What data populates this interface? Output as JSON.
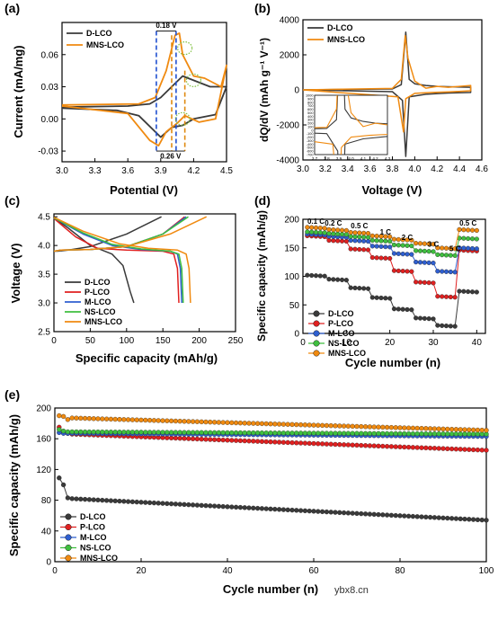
{
  "watermark": "ybx8.cn",
  "colors": {
    "D-LCO": "#3a3a3a",
    "P-LCO": "#e02020",
    "M-LCO": "#2f5fd0",
    "NS-LCO": "#3fbf3f",
    "MNS-LCO": "#f08a10",
    "dash_blue": "#2050d0",
    "dash_orange": "#e08a10",
    "circle_green": "#80c040"
  },
  "chart_data": [
    {
      "id": "a",
      "panel_label": "(a)",
      "type": "line",
      "xlabel": "Potential (V)",
      "ylabel": "Current (mA/mg)",
      "xlim": [
        3.0,
        4.5
      ],
      "ylim": [
        -0.04,
        0.09
      ],
      "xticks": [
        "3.0",
        "3.3",
        "3.6",
        "3.9",
        "4.2",
        "4.5"
      ],
      "yticks": [
        "-0.03",
        "0.00",
        "0.03",
        "0.06"
      ],
      "legend": [
        "D-LCO",
        "MNS-LCO"
      ],
      "annotations": [
        "0.18 V",
        "0.26 V"
      ],
      "series": [
        {
          "name": "D-LCO",
          "x": [
            3.0,
            3.6,
            3.8,
            3.9,
            4.0,
            4.1,
            4.2,
            4.35,
            4.5,
            4.4,
            4.2,
            4.1,
            4.0,
            3.9,
            3.85,
            3.7,
            3.5,
            3.0
          ],
          "y": [
            0.011,
            0.012,
            0.014,
            0.02,
            0.03,
            0.04,
            0.036,
            0.03,
            0.03,
            0.004,
            0.0,
            -0.006,
            -0.008,
            -0.017,
            -0.012,
            0.003,
            0.008,
            0.01
          ]
        },
        {
          "name": "MNS-LCO",
          "x": [
            3.0,
            3.7,
            3.85,
            3.95,
            4.03,
            4.07,
            4.1,
            4.2,
            4.3,
            4.45,
            4.5,
            4.4,
            4.25,
            4.12,
            4.05,
            3.95,
            3.88,
            3.8,
            3.6,
            3.0
          ],
          "y": [
            0.013,
            0.014,
            0.02,
            0.045,
            0.078,
            0.08,
            0.06,
            0.04,
            0.038,
            0.03,
            0.05,
            0.0,
            -0.003,
            0.003,
            -0.004,
            -0.012,
            -0.025,
            -0.02,
            0.005,
            0.012
          ]
        }
      ]
    },
    {
      "id": "b",
      "panel_label": "(b)",
      "type": "line",
      "xlabel": "Voltage (V)",
      "ylabel": "dQ/dV (mAh g⁻¹ V⁻¹)",
      "xlim": [
        3.0,
        4.6
      ],
      "ylim": [
        -4000,
        4000
      ],
      "xticks": [
        "3.0",
        "3.2",
        "3.4",
        "3.6",
        "3.8",
        "4.0",
        "4.2",
        "4.4",
        "4.6"
      ],
      "yticks": [
        "-4000",
        "-2000",
        "0",
        "2000",
        "4000"
      ],
      "legend": [
        "D-LCO",
        "MNS-LCO"
      ],
      "inset": {
        "xlim": [
          3.7,
          4.3
        ],
        "ylim": [
          -700,
          1000
        ],
        "xticks": [
          "3.7",
          "3.8",
          "3.9",
          "4.0",
          "4.1",
          "4.2",
          "4.3"
        ],
        "yticks": [
          "-700",
          "-600",
          "-500",
          "-400",
          "-300",
          "-200",
          "-100",
          "0",
          "100",
          "200",
          "300",
          "400",
          "500",
          "600",
          "700",
          "800",
          "900",
          "1000"
        ]
      },
      "series": [
        {
          "name": "D-LCO",
          "x": [
            3.0,
            3.8,
            3.88,
            3.92,
            3.95,
            4.0,
            4.1,
            4.2,
            4.3,
            4.5,
            4.5,
            4.3,
            4.1,
            3.95,
            3.92,
            3.89,
            3.8,
            3.0
          ],
          "y": [
            0,
            50,
            300,
            3300,
            600,
            350,
            250,
            200,
            180,
            150,
            -150,
            -180,
            -250,
            -400,
            -3800,
            -600,
            -100,
            0
          ]
        },
        {
          "name": "MNS-LCO",
          "x": [
            3.0,
            3.8,
            3.88,
            3.915,
            3.94,
            4.0,
            4.1,
            4.2,
            4.3,
            4.5,
            4.5,
            4.3,
            4.15,
            4.0,
            3.92,
            3.9,
            3.85,
            3.0
          ],
          "y": [
            0,
            80,
            600,
            3100,
            1800,
            500,
            100,
            200,
            150,
            250,
            -50,
            -120,
            -150,
            -200,
            -500,
            -2400,
            -400,
            0
          ]
        }
      ]
    },
    {
      "id": "c",
      "panel_label": "(c)",
      "type": "line",
      "xlabel": "Specific capacity (mAh/g)",
      "ylabel": "Voltage (V)",
      "xlim": [
        0,
        250
      ],
      "ylim": [
        2.5,
        4.55
      ],
      "xticks": [
        "0",
        "50",
        "100",
        "150",
        "200",
        "250"
      ],
      "yticks": [
        "2.5",
        "3.0",
        "3.5",
        "4.0",
        "4.5"
      ],
      "legend": [
        "D-LCO",
        "P-LCO",
        "M-LCO",
        "NS-LCO",
        "MNS-LCO"
      ],
      "series": [
        {
          "name": "D-LCO",
          "charge": {
            "x": [
              0,
              5,
              20,
              50,
              100,
              148
            ],
            "y": [
              3.9,
              3.9,
              3.92,
              3.98,
              4.2,
              4.5
            ]
          },
          "discharge": {
            "x": [
              0,
              20,
              50,
              80,
              95,
              105,
              110
            ],
            "y": [
              4.48,
              4.3,
              4.0,
              3.85,
              3.65,
              3.2,
              3.0
            ]
          }
        },
        {
          "name": "P-LCO",
          "charge": {
            "x": [
              0,
              10,
              50,
              100,
              150,
              180
            ],
            "y": [
              3.9,
              3.92,
              3.93,
              3.98,
              4.2,
              4.5
            ]
          },
          "discharge": {
            "x": [
              0,
              30,
              60,
              100,
              150,
              165,
              170,
              172
            ],
            "y": [
              4.47,
              4.15,
              3.95,
              3.92,
              3.9,
              3.85,
              3.6,
              3.0
            ]
          }
        },
        {
          "name": "M-LCO",
          "charge": {
            "x": [
              0,
              10,
              50,
              100,
              150,
              182
            ],
            "y": [
              3.9,
              3.92,
              3.93,
              3.98,
              4.2,
              4.5
            ]
          },
          "discharge": {
            "x": [
              0,
              40,
              80,
              120,
              160,
              170,
              174,
              176
            ],
            "y": [
              4.48,
              4.2,
              4.0,
              3.93,
              3.9,
              3.85,
              3.6,
              3.0
            ]
          }
        },
        {
          "name": "NS-LCO",
          "charge": {
            "x": [
              0,
              10,
              50,
              100,
              150,
              185
            ],
            "y": [
              3.9,
              3.92,
              3.93,
              3.98,
              4.2,
              4.5
            ]
          },
          "discharge": {
            "x": [
              0,
              40,
              80,
              120,
              160,
              172,
              176,
              178
            ],
            "y": [
              4.48,
              4.22,
              4.02,
              3.94,
              3.9,
              3.85,
              3.6,
              3.0
            ]
          }
        },
        {
          "name": "MNS-LCO",
          "charge": {
            "x": [
              0,
              10,
              50,
              100,
              160,
              210
            ],
            "y": [
              3.9,
              3.92,
              3.93,
              3.98,
              4.2,
              4.5
            ]
          },
          "discharge": {
            "x": [
              0,
              40,
              90,
              130,
              170,
              182,
              186,
              188
            ],
            "y": [
              4.49,
              4.25,
              4.03,
              3.95,
              3.92,
              3.85,
              3.6,
              3.0
            ]
          }
        }
      ]
    },
    {
      "id": "d",
      "panel_label": "(d)",
      "type": "scatter",
      "xlabel": "Cycle number (n)",
      "ylabel": "Specific capacity (mAh/g)",
      "xlim": [
        0,
        42
      ],
      "ylim": [
        0,
        200
      ],
      "xticks": [
        "0",
        "10",
        "20",
        "30",
        "40"
      ],
      "yticks": [
        "0",
        "50",
        "100",
        "150",
        "200"
      ],
      "legend": [
        "D-LCO",
        "P-LCO",
        "M-LCO",
        "NS-LCO",
        "MNS-LCO"
      ],
      "rate_labels": [
        "0.1 C",
        "0.2 C",
        "0.5 C",
        "1 C",
        "2 C",
        "3 C",
        "5 C",
        "0.5 C"
      ],
      "rate_steps": [
        0.1,
        0.2,
        0.5,
        1,
        2,
        3,
        5,
        0.5
      ],
      "series": [
        {
          "name": "D-LCO",
          "step_values": [
            102,
            95,
            80,
            63,
            43,
            27,
            14,
            74
          ]
        },
        {
          "name": "P-LCO",
          "step_values": [
            171,
            163,
            148,
            133,
            110,
            90,
            65,
            146
          ]
        },
        {
          "name": "M-LCO",
          "step_values": [
            174,
            170,
            163,
            153,
            140,
            125,
            109,
            150
          ]
        },
        {
          "name": "NS-LCO",
          "step_values": [
            178,
            175,
            170,
            163,
            155,
            145,
            138,
            167
          ]
        },
        {
          "name": "MNS-LCO",
          "step_values": [
            186,
            182,
            177,
            171,
            165,
            158,
            150,
            182
          ]
        }
      ]
    },
    {
      "id": "e",
      "panel_label": "(e)",
      "type": "scatter",
      "xlabel": "Cycle number (n)",
      "ylabel": "Specific capacity (mAh/g)",
      "xlim": [
        0,
        100
      ],
      "ylim": [
        0,
        200
      ],
      "xticks": [
        "0",
        "20",
        "40",
        "60",
        "80",
        "100"
      ],
      "yticks": [
        "0",
        "40",
        "80",
        "120",
        "160",
        "200"
      ],
      "legend": [
        "D-LCO",
        "P-LCO",
        "M-LCO",
        "NS-LCO",
        "MNS-LCO"
      ],
      "series": [
        {
          "name": "D-LCO",
          "first_cycles": [
            109,
            100,
            83
          ],
          "start": 82,
          "end": 54
        },
        {
          "name": "P-LCO",
          "first_cycles": [
            175,
            168,
            167
          ],
          "start": 166,
          "end": 145
        },
        {
          "name": "M-LCO",
          "first_cycles": [
            168,
            167,
            167
          ],
          "start": 167,
          "end": 163
        },
        {
          "name": "NS-LCO",
          "first_cycles": [
            172,
            170,
            169
          ],
          "start": 169,
          "end": 166
        },
        {
          "name": "MNS-LCO",
          "first_cycles": [
            190,
            189,
            185
          ],
          "start": 187,
          "end": 171
        }
      ]
    }
  ]
}
